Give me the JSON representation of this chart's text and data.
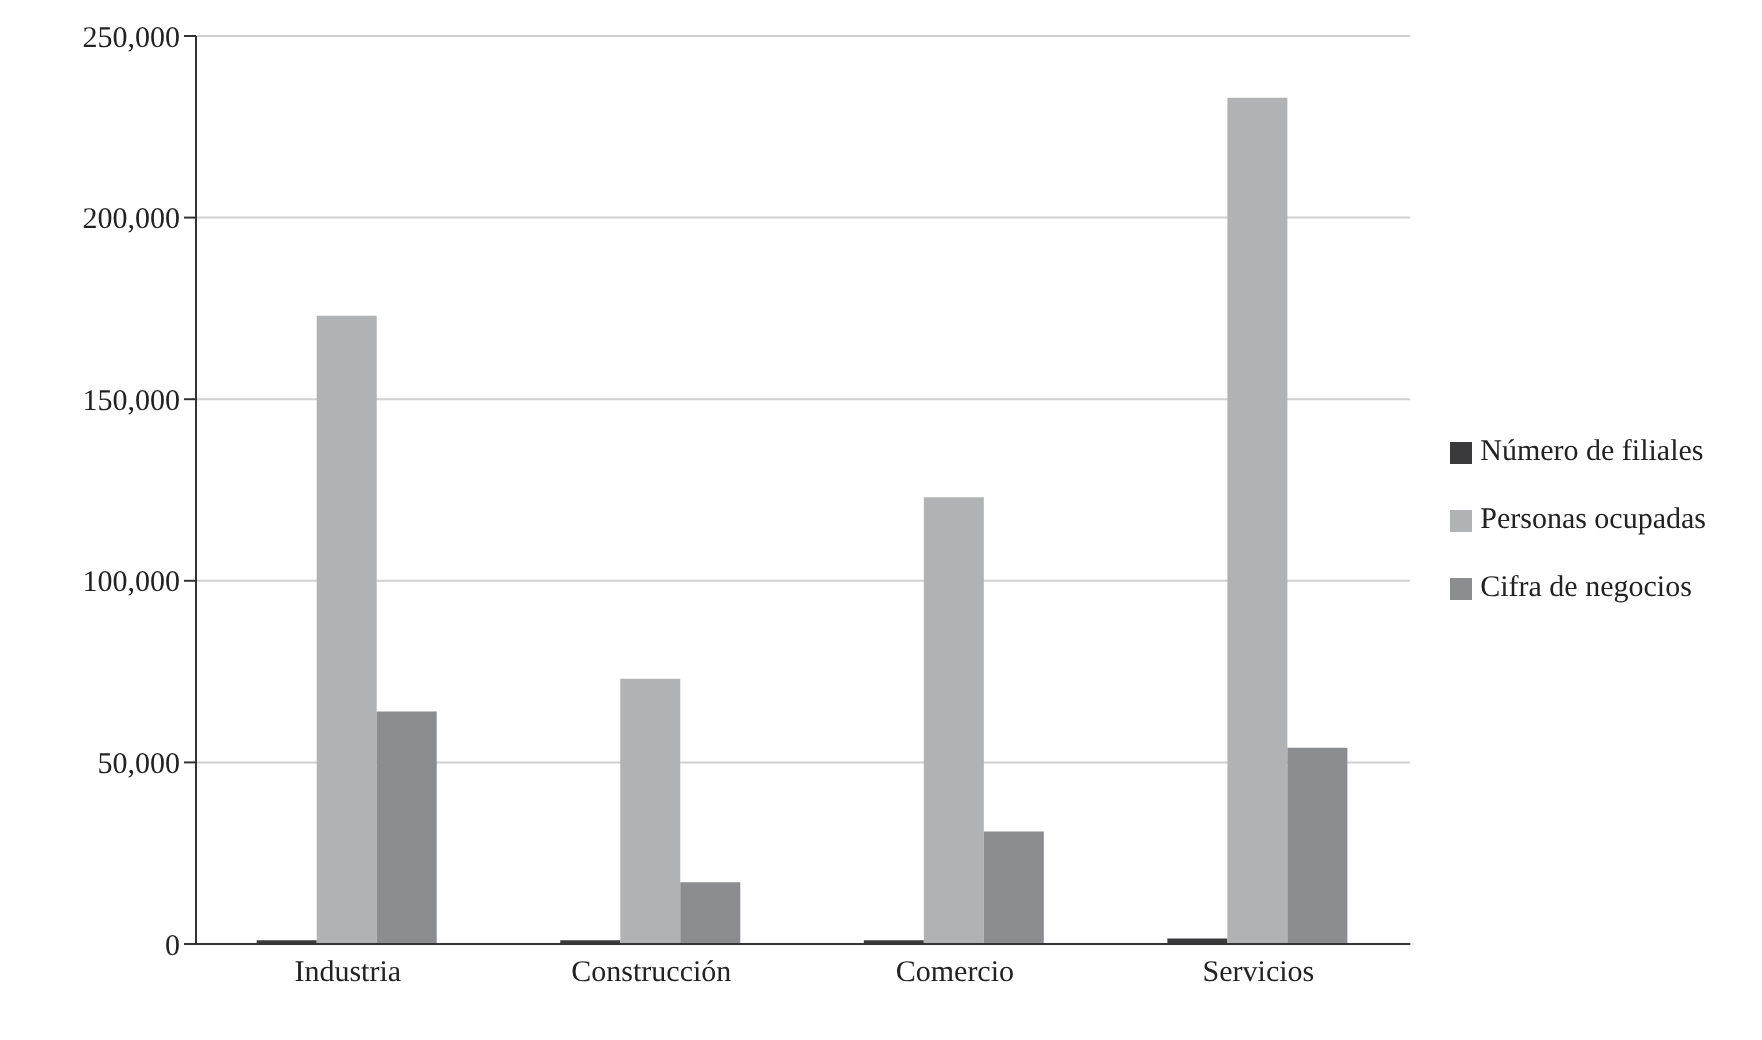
{
  "chart_data": {
    "type": "bar",
    "categories": [
      "Industria",
      "Construcción",
      "Comercio",
      "Servicios"
    ],
    "series": [
      {
        "name": "Número de filiales",
        "color": "#3a3a3c",
        "values": [
          1000,
          1000,
          1000,
          1500
        ]
      },
      {
        "name": "Personas ocupadas",
        "color": "#b1b2b5",
        "values": [
          173000,
          73000,
          123000,
          233000
        ]
      },
      {
        "name": "Cifra de negocios",
        "color": "#8b8c90",
        "values": [
          64000,
          17000,
          31000,
          54000
        ]
      }
    ],
    "ylim": [
      0,
      250000
    ],
    "yticks": [
      {
        "value": 0,
        "label": "0"
      },
      {
        "value": 50000,
        "label": "50,000"
      },
      {
        "value": 100000,
        "label": "100,000"
      },
      {
        "value": 150000,
        "label": "150,000"
      },
      {
        "value": 200000,
        "label": "200,000"
      },
      {
        "value": 250000,
        "label": "250,000"
      }
    ],
    "grid": "y",
    "legend": "right"
  }
}
